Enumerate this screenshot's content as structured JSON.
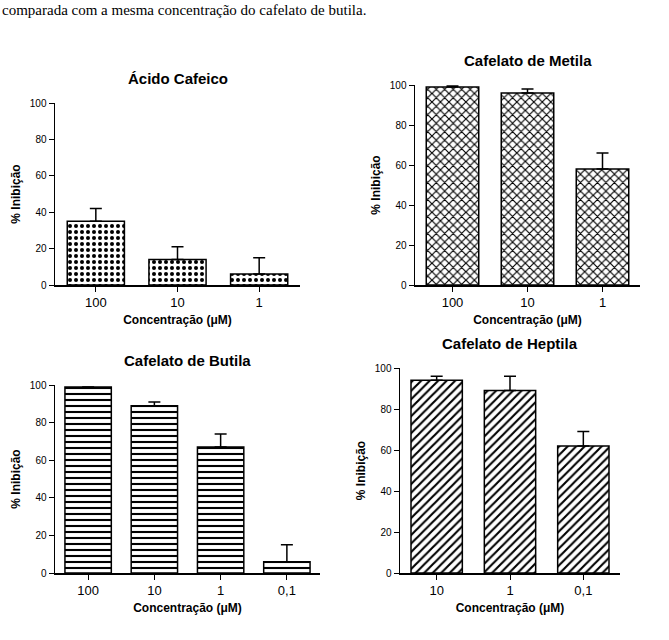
{
  "caption": "comparada com a mesma concentração do cafelato de butila.",
  "chart_data": [
    {
      "type": "bar",
      "title": "Ácido Cafeico",
      "x_label": "Concentração (μM)",
      "y_label": "% Inibição",
      "categories": [
        "100",
        "10",
        "1"
      ],
      "values": [
        35,
        14,
        6
      ],
      "errors": [
        7,
        7,
        9
      ],
      "color": "#000000",
      "marker": "dots",
      "ylim": [
        0,
        100
      ],
      "yticks": [
        0,
        20,
        40,
        60,
        80,
        100
      ],
      "grid": false
    },
    {
      "type": "bar",
      "title": "Cafelato de Metila",
      "x_label": "Concentração (μM)",
      "y_label": "% Inibição",
      "categories": [
        "100",
        "10",
        "1"
      ],
      "values": [
        99,
        96,
        58
      ],
      "errors": [
        0.5,
        2,
        8
      ],
      "color": "#000000",
      "marker": "checker",
      "ylim": [
        0,
        100
      ],
      "yticks": [
        0,
        20,
        40,
        60,
        80,
        100
      ],
      "grid": false
    },
    {
      "type": "bar",
      "title": "Cafelato de Butila",
      "x_label": "Concentração (μM)",
      "y_label": "% Inibição",
      "categories": [
        "100",
        "10",
        "1",
        "0,1"
      ],
      "values": [
        99,
        89,
        67,
        6
      ],
      "errors": [
        0,
        2,
        7,
        9
      ],
      "color": "#000000",
      "marker": "horizontal",
      "ylim": [
        0,
        100
      ],
      "yticks": [
        0,
        20,
        40,
        60,
        80,
        100
      ],
      "grid": false
    },
    {
      "type": "bar",
      "title": "Cafelato de Heptila",
      "x_label": "Concentração (μM)",
      "y_label": "% Inibição",
      "categories": [
        "10",
        "1",
        "0,1"
      ],
      "values": [
        94,
        89,
        62
      ],
      "errors": [
        2,
        7,
        7
      ],
      "color": "#000000",
      "marker": "diagonal",
      "ylim": [
        0,
        100
      ],
      "yticks": [
        0,
        20,
        40,
        60,
        80,
        100
      ],
      "grid": false
    }
  ]
}
